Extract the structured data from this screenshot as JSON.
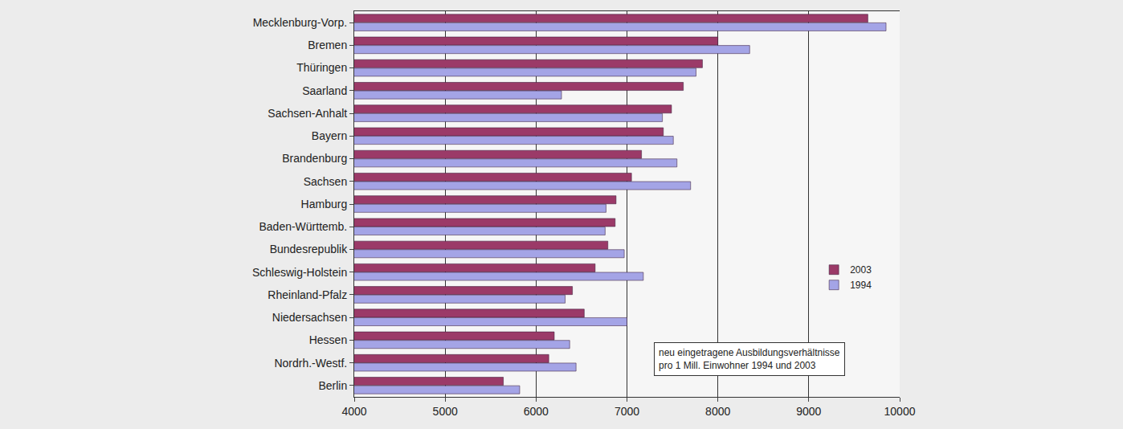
{
  "chart_data": {
    "type": "bar",
    "orientation": "horizontal",
    "categories": [
      "Mecklenburg-Vorp.",
      "Bremen",
      "Thüringen",
      "Saarland",
      "Sachsen-Anhalt",
      "Bayern",
      "Brandenburg",
      "Sachsen",
      "Hamburg",
      "Baden-Württemb.",
      "Bundesrepublik",
      "Schleswig-Holstein",
      "Rheinland-Pfalz",
      "Niedersachsen",
      "Hessen",
      "Nordrh.-Westf.",
      "Berlin"
    ],
    "series": [
      {
        "name": "2003",
        "color": "#9b3a68",
        "values": [
          9650,
          8000,
          7830,
          7620,
          7490,
          7400,
          7160,
          7050,
          6880,
          6870,
          6790,
          6650,
          6400,
          6530,
          6200,
          6140,
          5640
        ]
      },
      {
        "name": "1994",
        "color": "#a4a4e6",
        "values": [
          9850,
          8350,
          7760,
          6280,
          7390,
          7510,
          7550,
          7700,
          6770,
          6760,
          6970,
          7180,
          6320,
          7000,
          6370,
          6440,
          5820
        ]
      }
    ],
    "xlim": [
      4000,
      10000
    ],
    "xticks": [
      4000,
      5000,
      6000,
      7000,
      8000,
      9000,
      10000
    ],
    "grid": true,
    "legend": "right",
    "annotation": [
      "neu eingetragene Ausbildungsverhältnisse",
      "pro 1 Mill. Einwohner 1994 und 2003"
    ]
  }
}
